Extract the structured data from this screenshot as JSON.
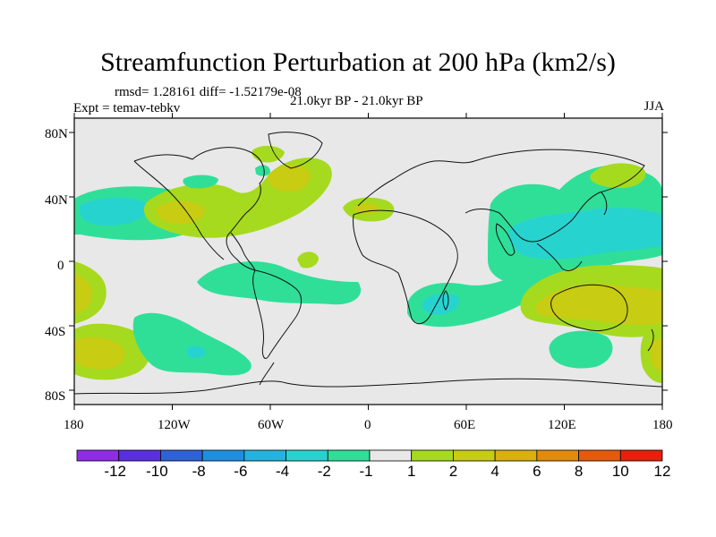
{
  "title": "Streamfunction Perturbation at 200 hPa (km2/s)",
  "stats": "rmsd= 1.28161 diff= -1.52179e-08",
  "experiment": "Expt = temav-tebkv",
  "period": "21.0kyr BP - 21.0kyr BP",
  "season": "JJA",
  "lat_ticks": [
    "80N",
    "40N",
    "0",
    "40S",
    "80S"
  ],
  "lon_ticks": [
    "180",
    "120W",
    "60W",
    "0",
    "60E",
    "120E",
    "180"
  ],
  "colorbar": {
    "labels": [
      "-12",
      "-10",
      "-8",
      "-6",
      "-4",
      "-2",
      "-1",
      "1",
      "2",
      "4",
      "6",
      "8",
      "10",
      "12"
    ],
    "colors": [
      "#8f2de6",
      "#5a2fe0",
      "#2f62d8",
      "#1e8fe0",
      "#22b4dd",
      "#27d3cf",
      "#2fdf98",
      "#e8e8e8",
      "#a6da1e",
      "#c8cc12",
      "#dab00c",
      "#e48a0a",
      "#e65a0a",
      "#e6200c"
    ]
  },
  "map": {
    "background_color": "#e8e8e8",
    "coast_color": "#111111"
  }
}
